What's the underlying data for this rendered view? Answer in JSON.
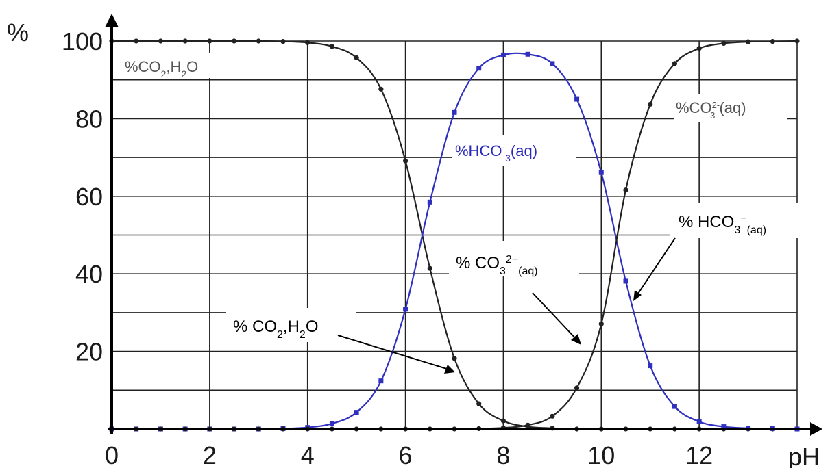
{
  "chart_data": {
    "type": "line",
    "x_axis": {
      "title": "pH",
      "ticks": [
        "0",
        "2",
        "4",
        "6",
        "8",
        "10",
        "12"
      ],
      "range": [
        0,
        14
      ]
    },
    "y_axis": {
      "title": "%",
      "ticks": [
        "100",
        "80",
        "60",
        "40",
        "20"
      ],
      "range": [
        0,
        100
      ]
    },
    "grid": true,
    "x": [
      0,
      0.5,
      1,
      1.5,
      2,
      2.5,
      3,
      3.5,
      4,
      4.5,
      5,
      5.5,
      6,
      6.5,
      7,
      7.5,
      8,
      8.5,
      9,
      9.5,
      10,
      10.5,
      11,
      11.5,
      12,
      12.5,
      13,
      13.5,
      14
    ],
    "series": [
      {
        "name": "%CO2,H2O",
        "color": "#222222",
        "values": [
          100,
          100,
          100,
          100,
          100,
          100,
          100,
          99.9,
          99.6,
          98.6,
          95.7,
          87.6,
          69.1,
          41.4,
          18.2,
          6.5,
          2.1,
          0.6,
          0.2,
          0.0,
          0.0,
          0.0,
          0.0,
          0.0,
          0.0,
          0.0,
          0.0,
          0.0,
          0.0
        ]
      },
      {
        "name": "%HCO3-(aq)",
        "color": "#2f2fc0",
        "values": [
          0.0,
          0.0,
          0.0,
          0.0,
          0.0,
          0.0,
          0.0,
          0.1,
          0.4,
          1.4,
          4.3,
          12.4,
          30.9,
          58.5,
          81.6,
          93.0,
          96.4,
          96.6,
          94.2,
          85.0,
          66.1,
          38.1,
          16.3,
          5.8,
          1.9,
          0.6,
          0.2,
          0.1,
          0.0
        ]
      },
      {
        "name": "%CO3 2-(aq)",
        "color": "#222222",
        "values": [
          0,
          0,
          0,
          0,
          0,
          0,
          0,
          0,
          0,
          0,
          0,
          0,
          0,
          0,
          0.0,
          0.1,
          0.3,
          1.0,
          3.3,
          10.6,
          27.1,
          61.6,
          83.7,
          94.2,
          98.1,
          99.4,
          99.8,
          99.9,
          100
        ]
      }
    ],
    "labels": {
      "co2_inner": "%CO",
      "co2_inner_sub1": "2",
      "co2_inner_mid": ",H",
      "co2_inner_sub2": "2",
      "co2_inner_end": "O",
      "hco3_inner": "%HCO",
      "hco3_inner_sup": "-",
      "hco3_inner_sub": "3",
      "hco3_inner_end": "(aq)",
      "co3_inner": "%CO",
      "co3_inner_sup": "2-",
      "co3_inner_sub": "3",
      "co3_inner_end": " (aq)"
    },
    "annotations": {
      "co2h2o": {
        "a": "% CO",
        "s1": "2",
        "b": ",H",
        "s2": "2",
        "c": "O"
      },
      "co3": {
        "a": "% CO",
        "s1": "3",
        "sup": "2−",
        "s2": "(aq)"
      },
      "hco3": {
        "a": "% HCO",
        "s1": "3",
        "sup": "−",
        "s2": "(aq)"
      }
    }
  }
}
